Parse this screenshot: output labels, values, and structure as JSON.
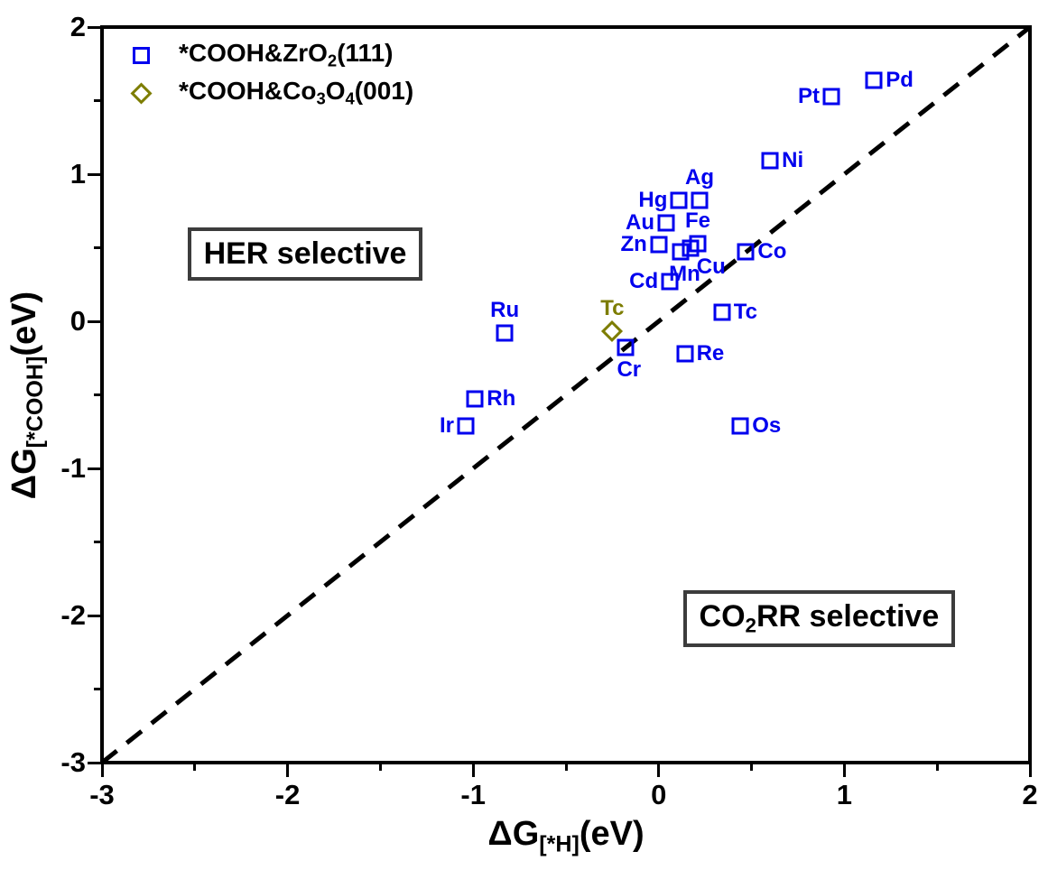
{
  "colors": {
    "series_zro2": "#0000EE",
    "series_co3o4": "#7D7D00",
    "frame": "#000000",
    "diagonal_line": "#000000",
    "annotation_border": "#3C3C3C",
    "background": "#FFFFFF"
  },
  "chart_data": {
    "type": "scatter",
    "title": "",
    "xlabel_plain": "ΔG[*H](eV)",
    "ylabel_plain": "ΔG[*COOH](eV)",
    "xlabel_runs": [
      [
        "ΔG",
        0
      ],
      [
        "[*H]",
        1
      ],
      [
        "(eV)",
        0
      ]
    ],
    "ylabel_runs": [
      [
        "ΔG",
        0
      ],
      [
        "[*COOH]",
        1
      ],
      [
        "(eV)",
        0
      ]
    ],
    "xlim": [
      -3,
      2
    ],
    "ylim": [
      -3,
      2
    ],
    "x_ticks": [
      -3,
      -2,
      -1,
      0,
      1,
      2
    ],
    "y_ticks": [
      -3,
      -2,
      -1,
      0,
      1,
      2
    ],
    "minor_tick_step": 0.5,
    "grid": false,
    "legend_position": "top-left",
    "diagonal_line": {
      "style": "dashed",
      "from": [
        -3,
        -3
      ],
      "to": [
        2,
        2
      ]
    },
    "series": [
      {
        "name_plain": "*COOH&ZrO2(111)",
        "name_runs": [
          [
            "*COOH&ZrO",
            0
          ],
          [
            "2",
            1
          ],
          [
            "(111)",
            0
          ]
        ],
        "marker": "open-square",
        "color": "#0000EE",
        "points": [
          {
            "label": "Pd",
            "x": 1.16,
            "y": 1.64,
            "label_pos": "right"
          },
          {
            "label": "Pt",
            "x": 0.93,
            "y": 1.53,
            "label_pos": "left"
          },
          {
            "label": "Ni",
            "x": 0.6,
            "y": 1.09,
            "label_pos": "right"
          },
          {
            "label": "Ag",
            "x": 0.22,
            "y": 0.82,
            "label_pos": "above"
          },
          {
            "label": "Hg",
            "x": 0.11,
            "y": 0.82,
            "label_pos": "left"
          },
          {
            "label": "Au",
            "x": 0.04,
            "y": 0.67,
            "label_pos": "left"
          },
          {
            "label": "Fe",
            "x": 0.21,
            "y": 0.53,
            "label_pos": "above"
          },
          {
            "label": "Zn",
            "x": 0.0,
            "y": 0.52,
            "label_pos": "left"
          },
          {
            "label": "Cu",
            "x": 0.17,
            "y": 0.5,
            "label_pos": "below-right"
          },
          {
            "label": "Mn",
            "x": 0.12,
            "y": 0.47,
            "label_pos": "below"
          },
          {
            "label": "Co",
            "x": 0.47,
            "y": 0.47,
            "label_pos": "right"
          },
          {
            "label": "Cd",
            "x": 0.06,
            "y": 0.27,
            "label_pos": "left"
          },
          {
            "label": "Tc",
            "x": 0.34,
            "y": 0.06,
            "label_pos": "right"
          },
          {
            "label": "Ru",
            "x": -0.83,
            "y": -0.08,
            "label_pos": "above"
          },
          {
            "label": "Cr",
            "x": -0.18,
            "y": -0.18,
            "label_pos": "below"
          },
          {
            "label": "Re",
            "x": 0.14,
            "y": -0.22,
            "label_pos": "right"
          },
          {
            "label": "Rh",
            "x": -0.99,
            "y": -0.53,
            "label_pos": "right"
          },
          {
            "label": "Ir",
            "x": -1.04,
            "y": -0.71,
            "label_pos": "left"
          },
          {
            "label": "Os",
            "x": 0.44,
            "y": -0.71,
            "label_pos": "right"
          }
        ]
      },
      {
        "name_plain": "*COOH&Co3O4(001)",
        "name_runs": [
          [
            "*COOH&Co",
            0
          ],
          [
            "3",
            1
          ],
          [
            "O",
            0
          ],
          [
            "4",
            1
          ],
          [
            "(001)",
            0
          ]
        ],
        "marker": "open-diamond",
        "color": "#7D7D00",
        "points": [
          {
            "label": "Tc",
            "x": -0.25,
            "y": -0.07,
            "label_pos": "above"
          }
        ]
      }
    ],
    "annotations": [
      {
        "text": "HER selective",
        "runs": [
          [
            "HER selective",
            0
          ]
        ],
        "anchor_x": -2.54,
        "anchor_y": 0.64
      },
      {
        "text": "CO2RR selective",
        "runs": [
          [
            "CO",
            0
          ],
          [
            "2",
            1
          ],
          [
            "RR selective",
            0
          ]
        ],
        "anchor_x": 0.13,
        "anchor_y": -1.83
      }
    ]
  }
}
